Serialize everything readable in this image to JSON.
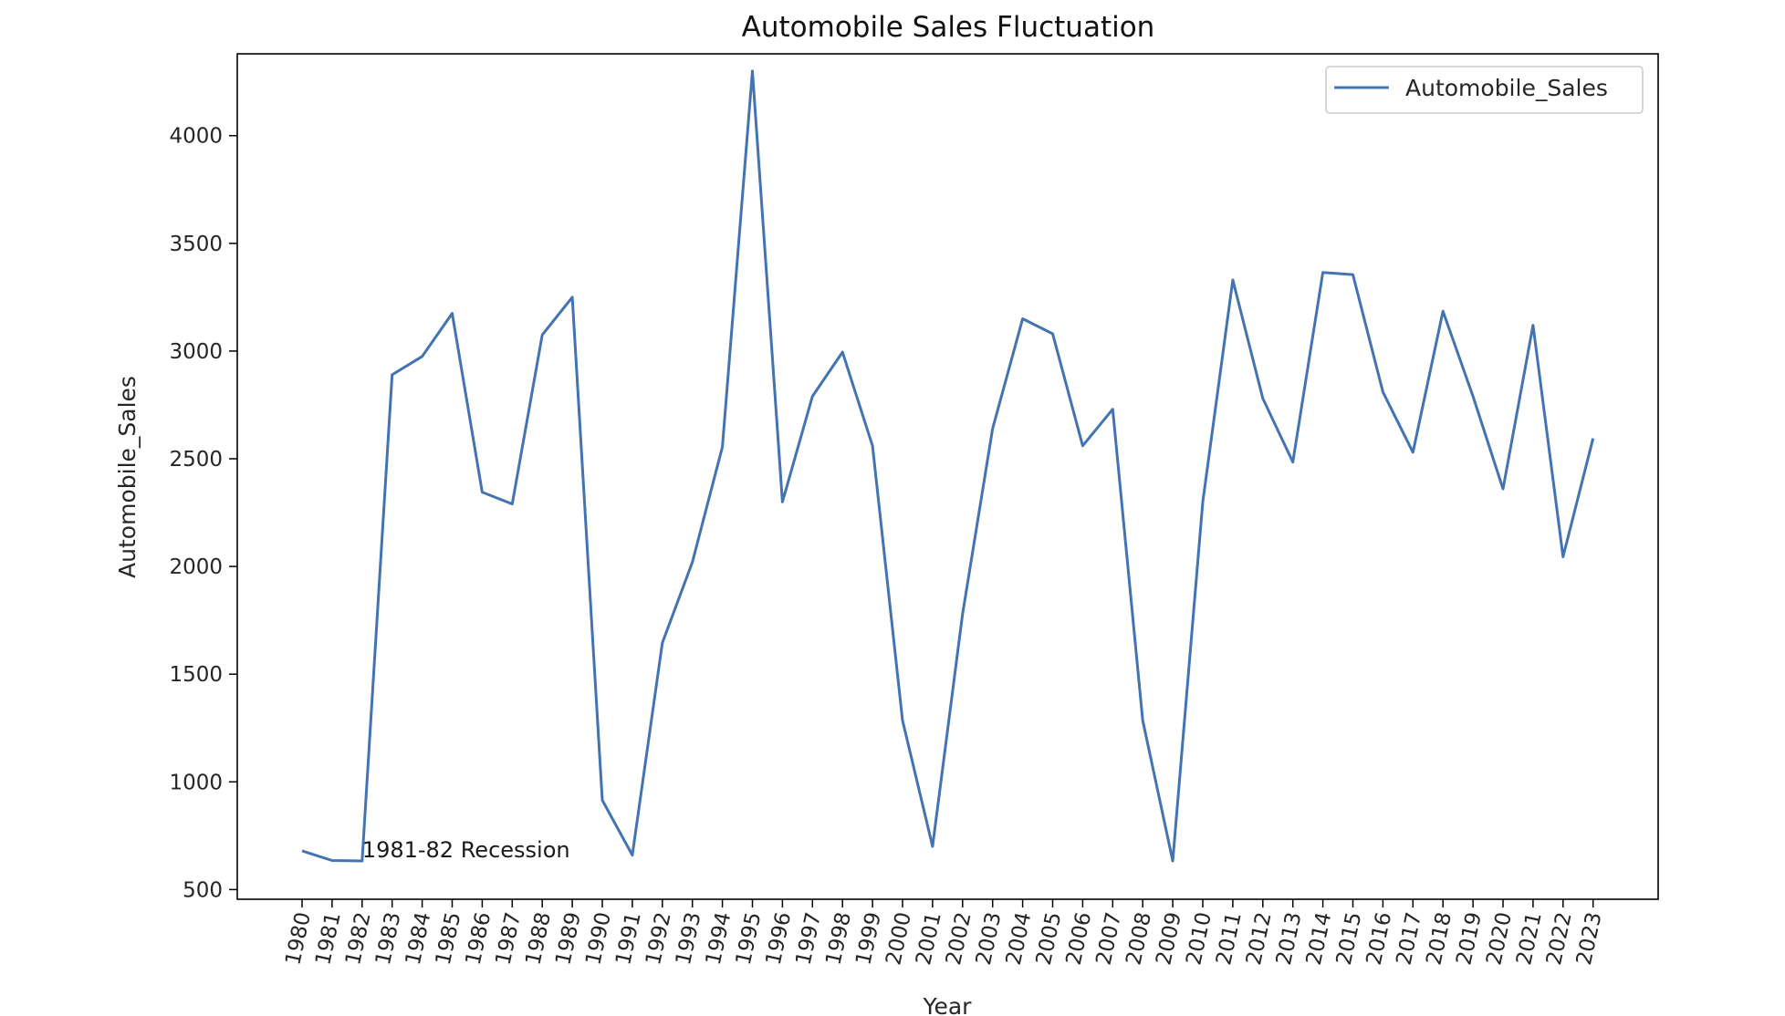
{
  "chart_data": {
    "type": "line",
    "title": "Automobile Sales Fluctuation",
    "xlabel": "Year",
    "ylabel": "Automobile_Sales",
    "ylim": [
      455,
      4380
    ],
    "yticks": [
      500,
      1000,
      1500,
      2000,
      2500,
      3000,
      3500,
      4000
    ],
    "grid": false,
    "legend_position": "top-right",
    "categories": [
      "1980",
      "1981",
      "1982",
      "1983",
      "1984",
      "1985",
      "1986",
      "1987",
      "1988",
      "1989",
      "1990",
      "1991",
      "1992",
      "1993",
      "1994",
      "1995",
      "1996",
      "1997",
      "1998",
      "1999",
      "2000",
      "2001",
      "2002",
      "2003",
      "2004",
      "2005",
      "2006",
      "2007",
      "2008",
      "2009",
      "2010",
      "2011",
      "2012",
      "2013",
      "2014",
      "2015",
      "2016",
      "2017",
      "2018",
      "2019",
      "2020",
      "2021",
      "2022",
      "2023"
    ],
    "series": [
      {
        "name": "Automobile_Sales",
        "color": "#4373b1",
        "values": [
          680,
          635,
          633,
          2890,
          2975,
          3175,
          2345,
          2290,
          3075,
          3250,
          915,
          660,
          1645,
          2020,
          2555,
          4300,
          2300,
          2790,
          2995,
          2560,
          1285,
          700,
          1780,
          2640,
          3150,
          3080,
          2560,
          2730,
          1285,
          633,
          2300,
          3330,
          2780,
          2485,
          3365,
          3355,
          2810,
          2530,
          3185,
          2790,
          2360,
          3120,
          2045,
          2595
        ]
      }
    ],
    "annotations": [
      {
        "text": "1981-82 Recession",
        "x": "1982",
        "y": 650
      }
    ]
  }
}
